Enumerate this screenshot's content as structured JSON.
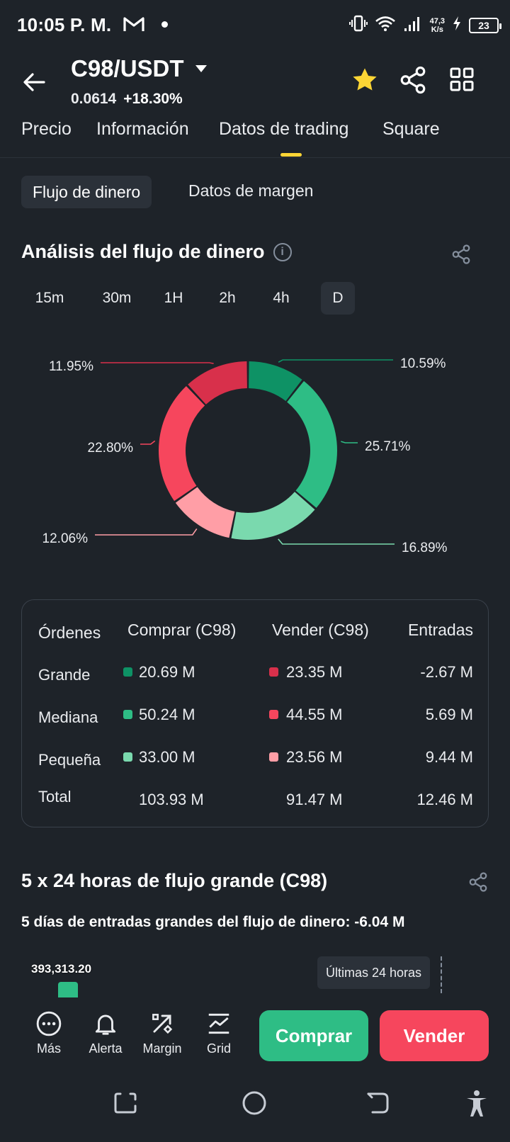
{
  "status_bar": {
    "time": "10:05 P. M.",
    "net_speed_value": "47,3",
    "net_speed_unit": "K/s",
    "battery": "23",
    "icons": [
      "gmail-icon",
      "vibrate-icon",
      "wifi-icon",
      "signal-icon",
      "charging-icon",
      "battery-icon"
    ]
  },
  "header": {
    "pair": "C98/USDT",
    "price": "0.0614",
    "change": "+18.30%",
    "favorite_color": "#fcd535"
  },
  "tabs": [
    {
      "label": "Precio"
    },
    {
      "label": "Información"
    },
    {
      "label": "Datos de trading",
      "active": true
    },
    {
      "label": "Square"
    }
  ],
  "subtabs": [
    {
      "label": "Flujo de dinero",
      "active": true
    },
    {
      "label": "Datos de margen"
    }
  ],
  "money_flow": {
    "title": "Análisis del flujo de dinero",
    "info_icon": "i",
    "intervals": [
      "15m",
      "30m",
      "1H",
      "2h",
      "4h",
      "D"
    ],
    "active_interval": "D"
  },
  "chart_data": {
    "type": "pie",
    "donut": true,
    "slices": [
      {
        "label": "10.59%",
        "value": 10.59,
        "color": "#0e9265"
      },
      {
        "label": "25.71%",
        "value": 25.71,
        "color": "#2ebd85"
      },
      {
        "label": "16.89%",
        "value": 16.89,
        "color": "#7ad9ae"
      },
      {
        "label": "12.06%",
        "value": 12.06,
        "color": "#ff9ea6"
      },
      {
        "label": "22.80%",
        "value": 22.8,
        "color": "#f6465d"
      },
      {
        "label": "11.95%",
        "value": 11.95,
        "color": "#d8304b"
      }
    ]
  },
  "orders_table": {
    "headers": [
      "Órdenes",
      "Comprar (C98)",
      "Vender (C98)",
      "Entradas"
    ],
    "rows": [
      {
        "name": "Grande",
        "buy": "20.69 M",
        "sell": "23.35 M",
        "net": "-2.67 M",
        "buy_color": "#0e9265",
        "sell_color": "#d8304b"
      },
      {
        "name": "Mediana",
        "buy": "50.24 M",
        "sell": "44.55 M",
        "net": "5.69 M",
        "buy_color": "#2ebd85",
        "sell_color": "#f6465d"
      },
      {
        "name": "Pequeña",
        "buy": "33.00 M",
        "sell": "23.56 M",
        "net": "9.44 M",
        "buy_color": "#7ad9ae",
        "sell_color": "#ff9ea6"
      },
      {
        "name": "Total",
        "buy": "103.93 M",
        "sell": "91.47 M",
        "net": "12.46 M"
      }
    ]
  },
  "large_flow": {
    "title": "5 x 24 horas de flujo grande (C98)",
    "subtitle": "5 días de entradas grandes del flujo de dinero: -6.04 M",
    "bar_value": "393,313.20",
    "badge": "Últimas 24 horas"
  },
  "toolbar": {
    "items": [
      {
        "label": "Más",
        "icon": "more-icon"
      },
      {
        "label": "Alerta",
        "icon": "bell-icon"
      },
      {
        "label": "Margin",
        "icon": "margin-icon"
      },
      {
        "label": "Grid",
        "icon": "grid-trading-icon"
      }
    ],
    "buy_label": "Comprar",
    "sell_label": "Vender"
  },
  "colors": {
    "background": "#1e2329",
    "card": "#2b3139",
    "accent": "#fcd535",
    "buy": "#2ebd85",
    "sell": "#f6465d"
  }
}
